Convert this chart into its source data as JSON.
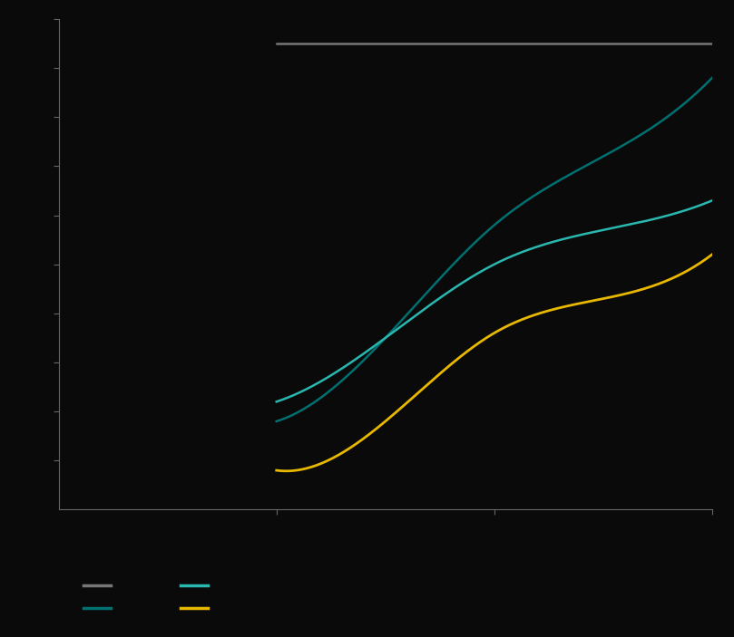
{
  "background_color": "#0a0a0a",
  "tick_color": "#666666",
  "spine_color": "#666666",
  "x_values": [
    1,
    1.5,
    2,
    2.5,
    3
  ],
  "line_gray": {
    "y": [
      95,
      95,
      95,
      95,
      95
    ],
    "color": "#777777",
    "linewidth": 1.8,
    "linestyle": "-"
  },
  "line_dark_teal": {
    "y": [
      18,
      35,
      58,
      72,
      88
    ],
    "color": "#007070",
    "linewidth": 1.8,
    "linestyle": "-"
  },
  "line_teal": {
    "y": [
      22,
      35,
      50,
      57,
      63
    ],
    "color": "#29b8b0",
    "linewidth": 1.8,
    "linestyle": "-"
  },
  "line_yellow": {
    "y": [
      8,
      18,
      36,
      43,
      52
    ],
    "color": "#e8b800",
    "linewidth": 2.0,
    "linestyle": "-"
  },
  "ylim": [
    0,
    100
  ],
  "xlim": [
    0,
    3
  ],
  "xticks": [
    1,
    2,
    3
  ],
  "yticks": [
    10,
    20,
    30,
    40,
    50,
    60,
    70,
    80,
    90,
    100
  ],
  "legend_items_row1": [
    {
      "label": "",
      "color": "#777777"
    },
    {
      "label": "",
      "color": "#007070"
    }
  ],
  "legend_items_row2": [
    {
      "label": "",
      "color": "#29b8b0"
    },
    {
      "label": "",
      "color": "#e8b800"
    }
  ]
}
